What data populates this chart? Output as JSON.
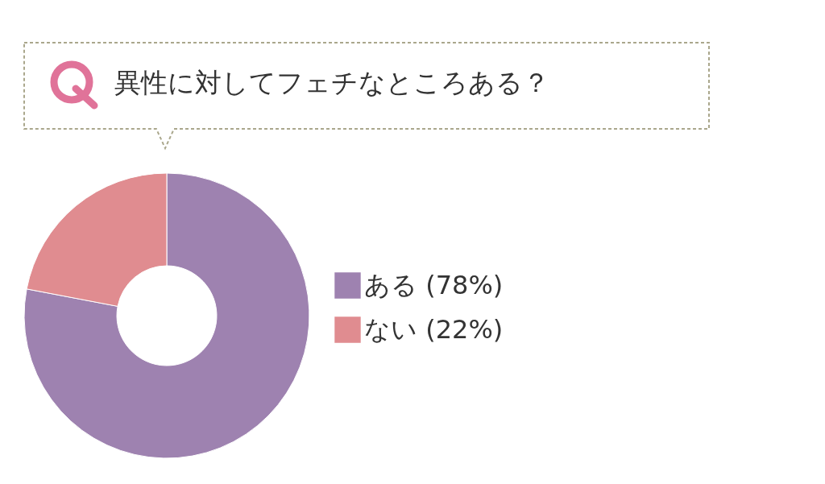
{
  "chart_data": {
    "type": "donut",
    "title": "異性に対してフェチなところある？",
    "categories": [
      "ある (78%)",
      "ない (22%)"
    ],
    "values": [
      78,
      22
    ],
    "colors": [
      "#9e82b0",
      "#e08c90"
    ],
    "legend": "right"
  }
}
